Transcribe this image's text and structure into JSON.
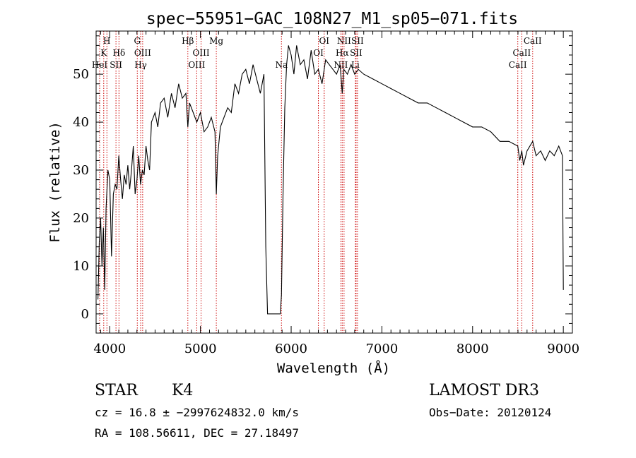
{
  "chart_data": {
    "type": "line",
    "title": "spec−55951−GAC_108N27_M1_sp05−071.fits",
    "xlabel": "Wavelength (Å)",
    "ylabel": "Flux (relative)",
    "xlim": [
      3850,
      9100
    ],
    "ylim": [
      -4,
      59
    ],
    "xticks": [
      4000,
      5000,
      6000,
      7000,
      8000,
      9000
    ],
    "yticks": [
      0,
      10,
      20,
      30,
      40,
      50
    ],
    "grid": false,
    "series": [
      {
        "x": [
          3870,
          3885,
          3900,
          3915,
          3930,
          3945,
          3960,
          3980,
          4000,
          4020,
          4040,
          4060,
          4080,
          4100,
          4120,
          4140,
          4160,
          4180,
          4200,
          4220,
          4240,
          4260,
          4280,
          4300,
          4320,
          4340,
          4360,
          4380,
          4400,
          4420,
          4440,
          4460,
          4480,
          4500,
          4530,
          4560,
          4600,
          4640,
          4680,
          4720,
          4760,
          4800,
          4840,
          4861,
          4880,
          4920,
          4960,
          5000,
          5040,
          5080,
          5120,
          5160,
          5175,
          5190,
          5220,
          5260,
          5300,
          5340,
          5380,
          5420,
          5460,
          5500,
          5540,
          5580,
          5620,
          5660,
          5700,
          5720,
          5740,
          5760,
          5780,
          5800,
          5820,
          5840,
          5860,
          5880,
          5893,
          5910,
          5930,
          5950,
          5970,
          6000,
          6030,
          6060,
          6100,
          6140,
          6180,
          6220,
          6260,
          6300,
          6340,
          6380,
          6420,
          6460,
          6500,
          6540,
          6563,
          6580,
          6620,
          6660,
          6700,
          6740,
          6800,
          6900,
          7000,
          7100,
          7200,
          7300,
          7400,
          7500,
          7600,
          7700,
          7800,
          7900,
          8000,
          8100,
          8200,
          8300,
          8400,
          8498,
          8520,
          8542,
          8560,
          8600,
          8662,
          8700,
          8750,
          8800,
          8850,
          8900,
          8950,
          8990,
          9000
        ],
        "values": [
          3,
          15,
          20,
          10,
          18,
          5,
          22,
          30,
          28,
          12,
          25,
          27,
          26,
          33,
          28,
          24,
          29,
          27,
          31,
          26,
          30,
          35,
          25,
          28,
          33,
          27,
          30,
          29,
          35,
          32,
          30,
          40,
          41,
          42,
          39,
          44,
          45,
          41,
          46,
          43,
          48,
          45,
          46,
          39,
          44,
          42,
          40,
          42,
          38,
          39,
          41,
          38,
          25,
          33,
          39,
          41,
          43,
          42,
          48,
          46,
          50,
          51,
          48,
          52,
          49,
          46,
          50,
          14,
          0,
          0,
          0,
          0,
          0,
          0,
          0,
          0,
          4,
          25,
          43,
          52,
          56,
          54,
          50,
          56,
          52,
          53,
          49,
          55,
          50,
          51,
          48,
          53,
          52,
          51,
          50,
          52,
          46,
          51,
          50,
          52,
          50,
          51,
          50,
          49,
          48,
          47,
          46,
          45,
          44,
          44,
          43,
          42,
          41,
          40,
          39,
          39,
          38,
          36,
          36,
          35,
          32,
          34,
          31,
          34,
          36,
          33,
          34,
          32,
          34,
          33,
          35,
          33,
          5
        ]
      }
    ],
    "lines": [
      {
        "label": "HeI",
        "x": 3889,
        "row": 3
      },
      {
        "label": "K",
        "x": 3934,
        "row": 2
      },
      {
        "label": "H",
        "x": 3969,
        "row": 1
      },
      {
        "label": "SII",
        "x": 4069,
        "row": 3
      },
      {
        "label": "Hδ",
        "x": 4102,
        "row": 2
      },
      {
        "label": "G",
        "x": 4304,
        "row": 1
      },
      {
        "label": "Hγ",
        "x": 4341,
        "row": 3
      },
      {
        "label": "OIII",
        "x": 4363,
        "row": 2
      },
      {
        "label": "Hβ",
        "x": 4861,
        "row": 1
      },
      {
        "label": "OIII",
        "x": 4959,
        "row": 3
      },
      {
        "label": "OIII",
        "x": 5007,
        "row": 2
      },
      {
        "label": "Mg",
        "x": 5175,
        "row": 1
      },
      {
        "label": "Na",
        "x": 5893,
        "row": 3
      },
      {
        "label": "OI",
        "x": 6300,
        "row": 2
      },
      {
        "label": "OI",
        "x": 6364,
        "row": 1
      },
      {
        "label": "NII",
        "x": 6548,
        "row": 3
      },
      {
        "label": "Hα",
        "x": 6563,
        "row": 2
      },
      {
        "label": "NII",
        "x": 6583,
        "row": 1
      },
      {
        "label": "Li",
        "x": 6708,
        "row": 3
      },
      {
        "label": "SII",
        "x": 6716,
        "row": 2
      },
      {
        "label": "SII",
        "x": 6731,
        "row": 1
      },
      {
        "label": "CaII",
        "x": 8498,
        "row": 3
      },
      {
        "label": "CaII",
        "x": 8542,
        "row": 2
      },
      {
        "label": "CaII",
        "x": 8662,
        "row": 1
      }
    ]
  },
  "info": {
    "class": "STAR",
    "subclass": "K4",
    "survey": "LAMOST DR3",
    "cz": "cz = 16.8 ± −2997624832.0 km/s",
    "obsdate": "Obs−Date: 20120124",
    "radec": "RA = 108.56611, DEC =  27.18497"
  },
  "colors": {
    "line": "#000000",
    "marker": "#cc0000",
    "axes": "#000000"
  }
}
